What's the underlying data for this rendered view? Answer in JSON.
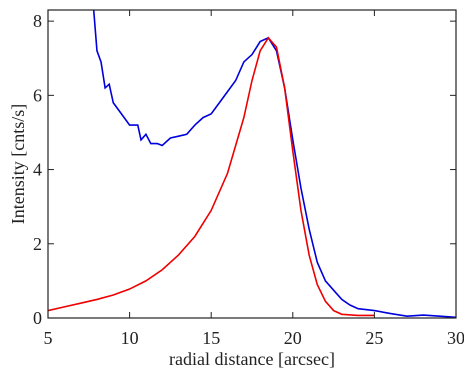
{
  "chart_data": {
    "type": "line",
    "xlabel": "radial distance [arcsec]",
    "ylabel": "Intensity [cnts/s]",
    "xlim": [
      5,
      30
    ],
    "ylim": [
      0,
      8.3
    ],
    "xticks": [
      5,
      10,
      15,
      20,
      25,
      30
    ],
    "yticks": [
      0,
      2,
      4,
      6,
      8
    ],
    "series": [
      {
        "color": "#0000dd",
        "x": [
          7.8,
          8.0,
          8.25,
          8.5,
          8.75,
          9,
          9.5,
          10,
          10.5,
          10.7,
          11,
          11.3,
          11.7,
          12,
          12.5,
          13,
          13.5,
          14,
          14.5,
          15,
          15.5,
          16,
          16.5,
          17,
          17.5,
          18,
          18.5,
          19,
          19.5,
          20,
          20.5,
          21,
          21.5,
          22,
          22.5,
          23,
          23.5,
          24,
          25,
          26,
          27,
          28,
          29,
          30
        ],
        "values": [
          8.3,
          7.2,
          6.9,
          6.2,
          6.3,
          5.8,
          5.5,
          5.2,
          5.2,
          4.8,
          4.95,
          4.7,
          4.7,
          4.65,
          4.85,
          4.9,
          4.95,
          5.2,
          5.4,
          5.5,
          5.8,
          6.1,
          6.4,
          6.9,
          7.1,
          7.45,
          7.55,
          7.2,
          6.2,
          4.8,
          3.5,
          2.4,
          1.5,
          1.0,
          0.75,
          0.5,
          0.35,
          0.25,
          0.2,
          0.12,
          0.05,
          0.08,
          0.05,
          0.02
        ]
      },
      {
        "color": "#ee0000",
        "x": [
          5,
          6,
          7,
          8,
          9,
          10,
          11,
          12,
          13,
          14,
          15,
          16,
          17,
          17.5,
          18,
          18.5,
          19,
          19.5,
          20,
          20.5,
          21,
          21.5,
          22,
          22.5,
          23,
          24,
          25
        ],
        "values": [
          0.2,
          0.3,
          0.4,
          0.5,
          0.62,
          0.78,
          1.0,
          1.3,
          1.7,
          2.2,
          2.9,
          3.9,
          5.4,
          6.4,
          7.2,
          7.55,
          7.3,
          6.2,
          4.5,
          2.9,
          1.7,
          0.9,
          0.45,
          0.2,
          0.1,
          0.07,
          0.07
        ]
      }
    ]
  }
}
